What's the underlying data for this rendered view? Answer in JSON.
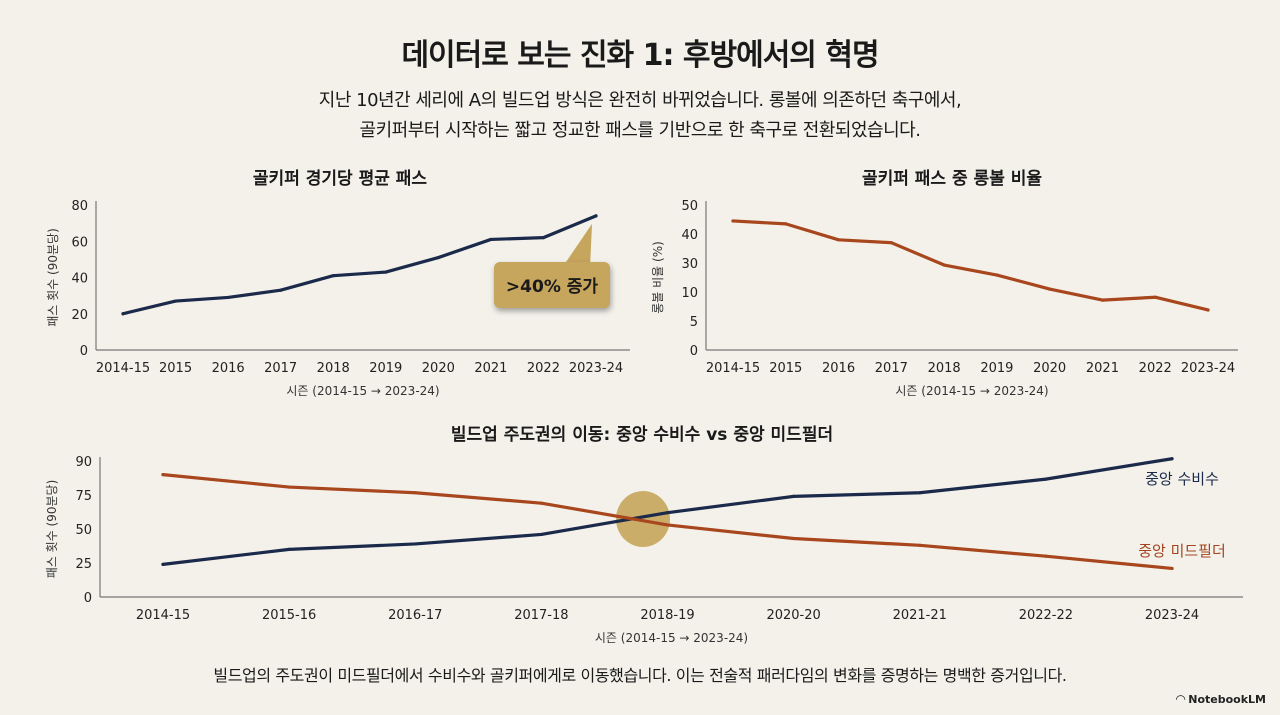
{
  "header": {
    "title": "데이터로 보는 진화 1: 후방에서의 혁명",
    "subtitle_line1": "지난 10년간 세리에 A의 빌드업 방식은 완전히 바뀌었습니다. 롱볼에 의존하던 축구에서,",
    "subtitle_line2": "골키퍼부터 시작하는 짧고 정교한 패스를 기반으로 한 축구로 전환되었습니다."
  },
  "colors": {
    "background": "#f3f1ea",
    "navy": "#1b2a4a",
    "rust": "#a8461d",
    "gold": "#c6a55c"
  },
  "chart_data": [
    {
      "type": "line",
      "title": "골키퍼 경기당 평균 패스",
      "xlabel": "시즌 (2014-15 → 2023-24)",
      "ylabel": "패스 횟수 (90분당)",
      "categories": [
        "2014-15",
        "2015",
        "2016",
        "2017",
        "2018",
        "2019",
        "2020",
        "2021",
        "2022",
        "2023-24"
      ],
      "series": [
        {
          "name": "골키퍼 경기당 평균 패스",
          "color": "#1b2a4a",
          "values": [
            20,
            27,
            29,
            33,
            41,
            43,
            51,
            61,
            62,
            74
          ]
        }
      ],
      "yticks": [
        0,
        20,
        40,
        60,
        80
      ],
      "ylim": [
        0,
        80
      ],
      "grid": false,
      "annotation": {
        "text": ">40% 증가",
        "target": "2023-24"
      }
    },
    {
      "type": "line",
      "title": "골키퍼 패스 중 롱볼 비율",
      "xlabel": "시즌 (2014-15 → 2023-24)",
      "ylabel": "롱볼 비율 (%)",
      "categories": [
        "2014-15",
        "2015",
        "2016",
        "2017",
        "2018",
        "2019",
        "2020",
        "2021",
        "2022",
        "2023-24"
      ],
      "series": [
        {
          "name": "롱볼 비율",
          "color": "#a8461d",
          "values": [
            44.5,
            43.5,
            38,
            37,
            28.6,
            21.7,
            12,
            8.6,
            9.1,
            6.9
          ]
        }
      ],
      "yticks": [
        0,
        5,
        10,
        30,
        40,
        50
      ],
      "ytick_scale": "labels evenly spaced (non-linear)",
      "ylim": [
        0,
        50
      ],
      "grid": false
    },
    {
      "type": "line",
      "title": "빌드업 주도권의 이동: 중앙 수비수 vs 중앙 미드필더",
      "xlabel": "시즌 (2014-15 → 2023-24)",
      "ylabel": "패스 횟수 (90분당)",
      "categories": [
        "2014-15",
        "2015-16",
        "2016-17",
        "2017-18",
        "2018-19",
        "2020-20",
        "2021-21",
        "2022-22",
        "2023-24"
      ],
      "series": [
        {
          "name": "중앙 수비수",
          "color": "#1b2a4a",
          "values": [
            24,
            35,
            39,
            46,
            62,
            74,
            76,
            82,
            91
          ]
        },
        {
          "name": "중앙 미드필더",
          "color": "#a8461d",
          "values": [
            84,
            78.5,
            76,
            69,
            53,
            43,
            38,
            30,
            21
          ]
        }
      ],
      "yticks": [
        0,
        25,
        50,
        75,
        90
      ],
      "ytick_scale": "labels evenly spaced (non-linear)",
      "ylim": [
        0,
        90
      ],
      "grid": false,
      "legend": "inline-right",
      "annotation": {
        "type": "crossover-highlight",
        "between": [
          "2017-18",
          "2018-19"
        ]
      }
    }
  ],
  "footer": {
    "text": "빌드업의 주도권이 미드필더에서 수비수와 골키퍼에게로 이동했습니다. 이는 전술적 패러다임의 변화를 증명하는 명백한 증거입니다.",
    "brand": "NotebookLM",
    "brand_icon": "notebooklm-logo-icon"
  }
}
